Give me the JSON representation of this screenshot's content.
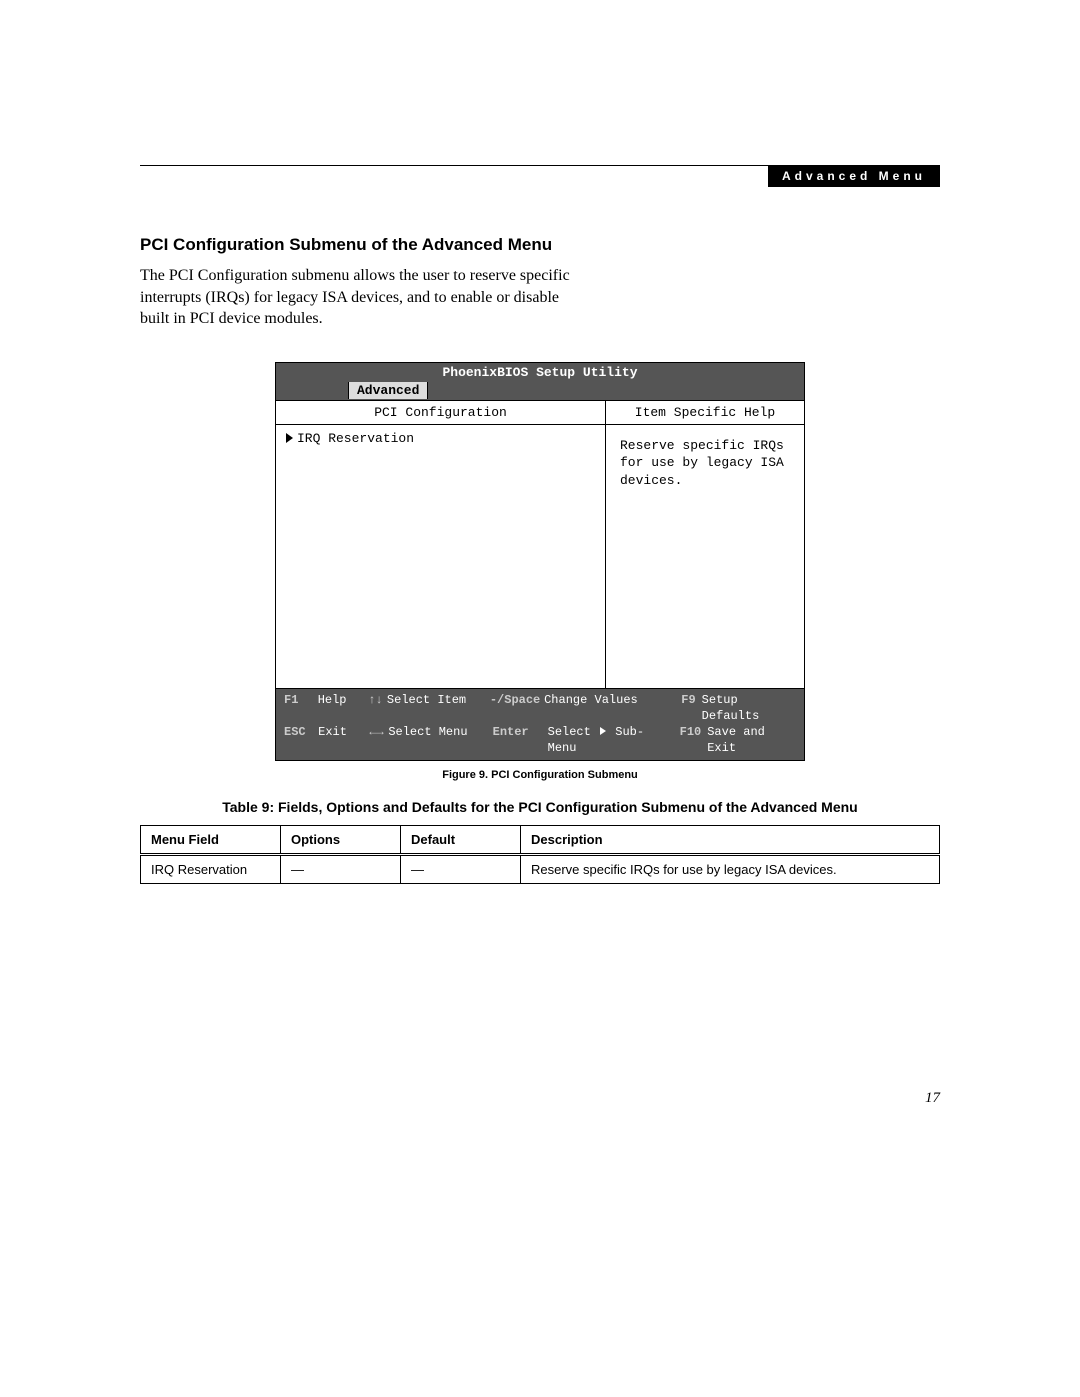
{
  "header": {
    "label": "Advanced Menu"
  },
  "section": {
    "title": "PCI Configuration Submenu of the Advanced Menu",
    "intro": "The PCI Configuration submenu allows the user to reserve specific interrupts (IRQs) for legacy ISA devices, and to enable or disable built in PCI device modules."
  },
  "bios": {
    "title": "PhoenixBIOS Setup Utility",
    "active_tab": "Advanced",
    "left_header": "PCI Configuration",
    "menu_item": "IRQ Reservation",
    "right_header": "Item Specific Help",
    "help_text": "Reserve specific IRQs for use by legacy ISA devices.",
    "footer": {
      "row1": {
        "k1": "F1",
        "l1": "Help",
        "k2": "↑↓",
        "l2": "Select Item",
        "k3": "-/Space",
        "l3": "Change Values",
        "k4": "F9",
        "l4": "Setup Defaults"
      },
      "row2": {
        "k1": "ESC",
        "l1": "Exit",
        "k2": "←→",
        "l2": "Select Menu",
        "k3": "Enter",
        "l3a": "Select",
        "l3b": "Sub-Menu",
        "k4": "F10",
        "l4": "Save and Exit"
      }
    }
  },
  "figure_caption": "Figure 9.  PCI Configuration Submenu",
  "table_caption": "Table 9: Fields, Options and Defaults for  the PCI Configuration Submenu of the Advanced Menu",
  "table": {
    "columns": [
      "Menu Field",
      "Options",
      "Default",
      "Description"
    ],
    "rows": [
      [
        "IRQ Reservation",
        "—",
        "—",
        "Reserve specific IRQs for use by legacy ISA devices."
      ]
    ]
  },
  "page_number": "17",
  "colors": {
    "bios_bar": "#555555",
    "bios_tab_bg": "#dddddd",
    "black": "#000000",
    "white": "#ffffff"
  }
}
